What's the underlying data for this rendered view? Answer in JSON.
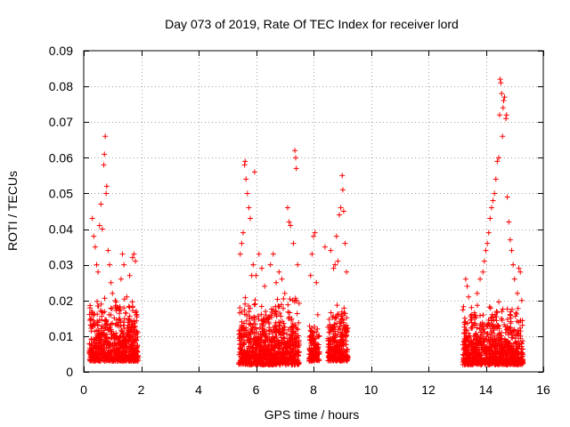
{
  "chart_data": {
    "type": "scatter",
    "title": "Day 073 of 2019, Rate Of TEC Index for receiver lord",
    "xlabel": "GPS time / hours",
    "ylabel": "ROTI / TECUs",
    "xlim": [
      0,
      16
    ],
    "ylim": [
      0,
      0.09
    ],
    "xticks": [
      0,
      2,
      4,
      6,
      8,
      10,
      12,
      14,
      16
    ],
    "xtick_labels": [
      "0",
      "2",
      "4",
      "6",
      "8",
      "10",
      "12",
      "14",
      "16"
    ],
    "yticks": [
      0,
      0.01,
      0.02,
      0.03,
      0.04,
      0.05,
      0.06,
      0.07,
      0.08,
      0.09
    ],
    "ytick_labels": [
      "0",
      "0.01",
      "0.02",
      "0.03",
      "0.04",
      "0.05",
      "0.06",
      "0.07",
      "0.08",
      "0.09"
    ],
    "grid": true,
    "marker": "+",
    "color": "#ff0000",
    "series": [
      {
        "name": "ROTI",
        "points": [
          [
            0.3,
            0.043
          ],
          [
            0.35,
            0.038
          ],
          [
            0.4,
            0.035
          ],
          [
            0.45,
            0.03
          ],
          [
            0.5,
            0.028
          ],
          [
            0.55,
            0.041
          ],
          [
            0.6,
            0.047
          ],
          [
            0.65,
            0.04
          ],
          [
            0.7,
            0.058
          ],
          [
            0.72,
            0.061
          ],
          [
            0.75,
            0.066
          ],
          [
            0.78,
            0.05
          ],
          [
            0.8,
            0.052
          ],
          [
            0.85,
            0.034
          ],
          [
            0.9,
            0.03
          ],
          [
            0.95,
            0.025
          ],
          [
            1.0,
            0.022
          ],
          [
            1.1,
            0.02
          ],
          [
            1.2,
            0.018
          ],
          [
            1.3,
            0.026
          ],
          [
            1.35,
            0.033
          ],
          [
            1.4,
            0.03
          ],
          [
            1.5,
            0.021
          ],
          [
            1.6,
            0.027
          ],
          [
            1.7,
            0.032
          ],
          [
            1.75,
            0.033
          ],
          [
            1.8,
            0.031
          ],
          [
            5.45,
            0.033
          ],
          [
            5.5,
            0.036
          ],
          [
            5.55,
            0.039
          ],
          [
            5.6,
            0.058
          ],
          [
            5.62,
            0.059
          ],
          [
            5.65,
            0.054
          ],
          [
            5.7,
            0.05
          ],
          [
            5.75,
            0.046
          ],
          [
            5.8,
            0.043
          ],
          [
            5.85,
            0.027
          ],
          [
            5.9,
            0.03
          ],
          [
            5.95,
            0.056
          ],
          [
            6.0,
            0.027
          ],
          [
            6.1,
            0.033
          ],
          [
            6.2,
            0.029
          ],
          [
            6.3,
            0.024
          ],
          [
            6.5,
            0.03
          ],
          [
            6.6,
            0.033
          ],
          [
            6.7,
            0.025
          ],
          [
            6.8,
            0.028
          ],
          [
            6.9,
            0.026
          ],
          [
            7.0,
            0.022
          ],
          [
            7.1,
            0.046
          ],
          [
            7.15,
            0.042
          ],
          [
            7.2,
            0.041
          ],
          [
            7.3,
            0.036
          ],
          [
            7.35,
            0.062
          ],
          [
            7.38,
            0.06
          ],
          [
            7.4,
            0.057
          ],
          [
            7.45,
            0.03
          ],
          [
            7.9,
            0.027
          ],
          [
            7.95,
            0.033
          ],
          [
            8.0,
            0.038
          ],
          [
            8.05,
            0.039
          ],
          [
            8.1,
            0.025
          ],
          [
            8.15,
            0.016
          ],
          [
            8.4,
            0.035
          ],
          [
            8.6,
            0.034
          ],
          [
            8.7,
            0.029
          ],
          [
            8.75,
            0.03
          ],
          [
            8.8,
            0.038
          ],
          [
            8.85,
            0.031
          ],
          [
            8.9,
            0.044
          ],
          [
            8.95,
            0.046
          ],
          [
            9.0,
            0.055
          ],
          [
            9.02,
            0.051
          ],
          [
            9.05,
            0.045
          ],
          [
            9.1,
            0.036
          ],
          [
            9.15,
            0.028
          ],
          [
            13.3,
            0.026
          ],
          [
            13.35,
            0.024
          ],
          [
            13.4,
            0.021
          ],
          [
            13.5,
            0.018
          ],
          [
            13.6,
            0.016
          ],
          [
            13.7,
            0.022
          ],
          [
            13.8,
            0.026
          ],
          [
            13.9,
            0.028
          ],
          [
            13.95,
            0.031
          ],
          [
            14.0,
            0.034
          ],
          [
            14.05,
            0.036
          ],
          [
            14.1,
            0.039
          ],
          [
            14.15,
            0.043
          ],
          [
            14.2,
            0.046
          ],
          [
            14.25,
            0.048
          ],
          [
            14.3,
            0.05
          ],
          [
            14.35,
            0.054
          ],
          [
            14.4,
            0.059
          ],
          [
            14.45,
            0.06
          ],
          [
            14.48,
            0.072
          ],
          [
            14.5,
            0.082
          ],
          [
            14.52,
            0.081
          ],
          [
            14.55,
            0.078
          ],
          [
            14.58,
            0.066
          ],
          [
            14.6,
            0.074
          ],
          [
            14.62,
            0.076
          ],
          [
            14.65,
            0.077
          ],
          [
            14.7,
            0.071
          ],
          [
            14.72,
            0.072
          ],
          [
            14.75,
            0.049
          ],
          [
            14.8,
            0.042
          ],
          [
            14.85,
            0.037
          ],
          [
            14.9,
            0.034
          ],
          [
            14.95,
            0.03
          ],
          [
            15.0,
            0.026
          ],
          [
            15.1,
            0.022
          ],
          [
            15.15,
            0.029
          ],
          [
            15.2,
            0.028
          ],
          [
            15.25,
            0.02
          ]
        ],
        "dense_clusters": [
          {
            "x_range": [
              0.2,
              1.9
            ],
            "y_range": [
              0.003,
              0.021
            ]
          },
          {
            "x_range": [
              5.4,
              7.5
            ],
            "y_range": [
              0.002,
              0.022
            ]
          },
          {
            "x_range": [
              7.85,
              8.2
            ],
            "y_range": [
              0.003,
              0.014
            ]
          },
          {
            "x_range": [
              8.5,
              9.2
            ],
            "y_range": [
              0.003,
              0.02
            ]
          },
          {
            "x_range": [
              13.2,
              15.3
            ],
            "y_range": [
              0.002,
              0.02
            ]
          }
        ]
      }
    ]
  }
}
